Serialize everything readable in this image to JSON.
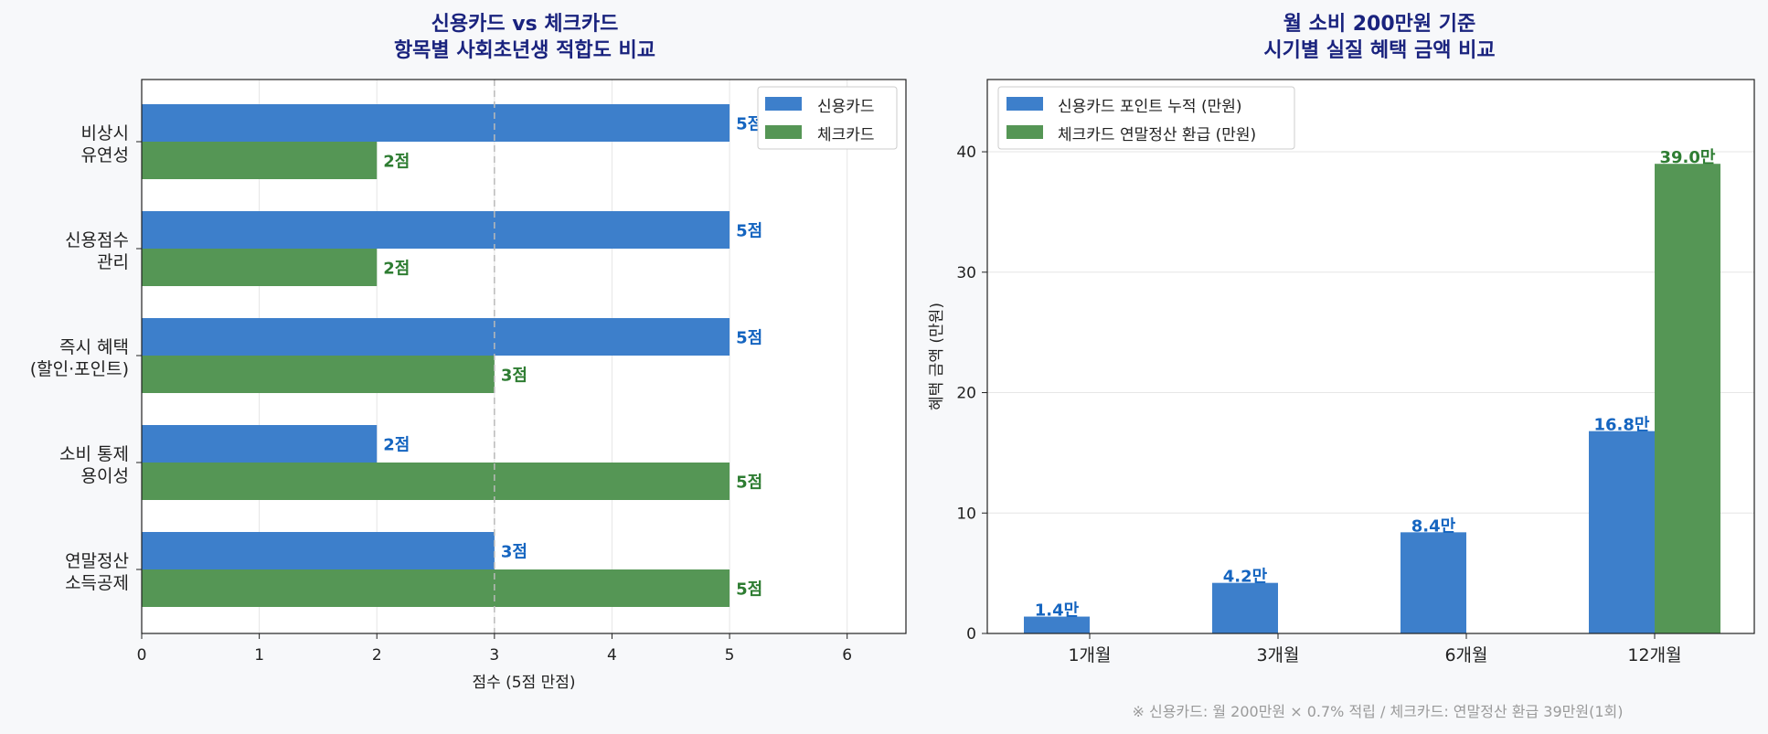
{
  "colors": {
    "credit": "#3d7fcb",
    "check": "#559655",
    "credit_label": "#1565c0",
    "check_label": "#2e7d32",
    "title": "#1a237e"
  },
  "chart_data": [
    {
      "type": "bar",
      "orientation": "horizontal",
      "title_lines": [
        "신용카드 vs 체크카드",
        "항목별 사회초년생 적합도 비교"
      ],
      "categories": [
        [
          "비상시",
          "유연성"
        ],
        [
          "신용점수",
          "관리"
        ],
        [
          "즉시 혜택",
          "(할인·포인트)"
        ],
        [
          "소비 통제",
          "용이성"
        ],
        [
          "연말정산",
          "소득공제"
        ]
      ],
      "series": [
        {
          "name": "신용카드",
          "values": [
            5,
            5,
            5,
            2,
            3
          ],
          "labels": [
            "5점",
            "5점",
            "5점",
            "2점",
            "3점"
          ]
        },
        {
          "name": "체크카드",
          "values": [
            2,
            2,
            3,
            5,
            5
          ],
          "labels": [
            "2점",
            "2점",
            "3점",
            "5점",
            "5점"
          ]
        }
      ],
      "xlabel": "점수 (5점 만점)",
      "xlim": [
        0,
        6.5
      ],
      "xticks": [
        "0",
        "1",
        "2",
        "3",
        "4",
        "5",
        "6"
      ],
      "reference_line": 3,
      "grid": "vertical",
      "legend": "top-right"
    },
    {
      "type": "bar",
      "title_lines": [
        "월 소비 200만원 기준",
        "시기별 실질 혜택 금액 비교"
      ],
      "categories": [
        "1개월",
        "3개월",
        "6개월",
        "12개월"
      ],
      "series": [
        {
          "name": "신용카드 포인트 누적 (만원)",
          "values": [
            1.4,
            4.2,
            8.4,
            16.8
          ],
          "labels": [
            "1.4만",
            "4.2만",
            "8.4만",
            "16.8만"
          ]
        },
        {
          "name": "체크카드 연말정산 환급 (만원)",
          "values": [
            0,
            0,
            0,
            39.0
          ],
          "labels": [
            "",
            "",
            "",
            "39.0만"
          ]
        }
      ],
      "ylabel": "혜택 금액 (만원)",
      "ylim": [
        0,
        46
      ],
      "yticks": [
        "0",
        "10",
        "20",
        "30",
        "40"
      ],
      "grid": "horizontal",
      "legend": "top-left"
    }
  ],
  "footnote": "※ 신용카드: 월 200만원 × 0.7% 적립  /  체크카드: 연말정산 환급 39만원(1회)"
}
